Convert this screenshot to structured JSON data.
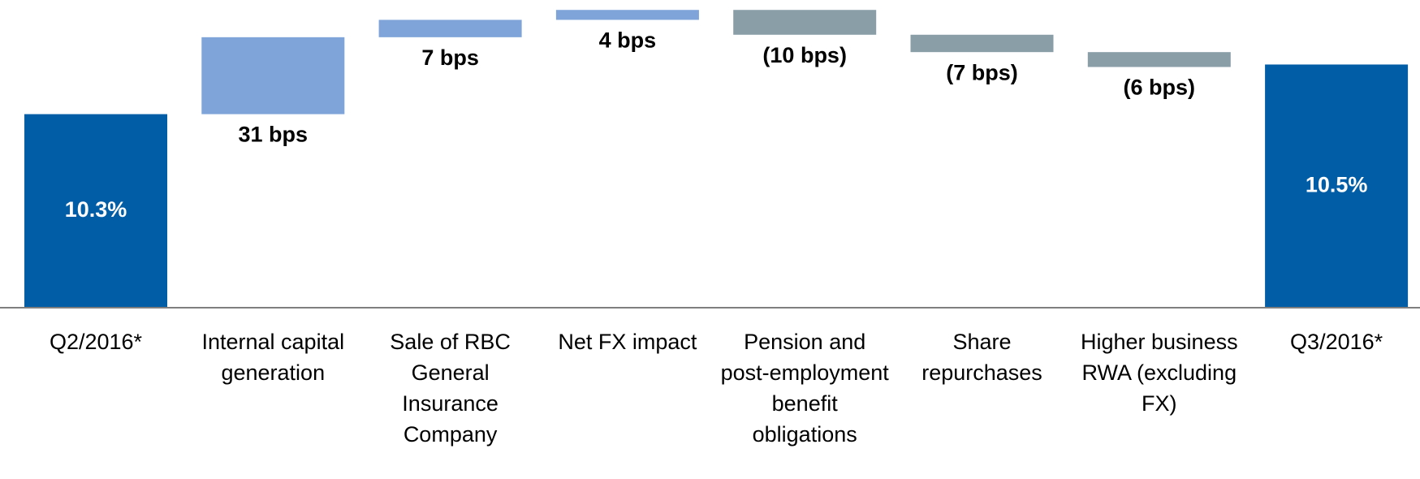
{
  "chart_data": {
    "type": "waterfall",
    "categories": [
      "Q2/2016*",
      "Internal capital generation",
      "Sale of RBC General Insurance Company",
      "Net FX impact",
      "Pension and post-employment benefit obligations",
      "Share repurchases",
      "Higher business RWA (excluding FX)",
      "Q3/2016*"
    ],
    "measure": [
      "absolute",
      "relative",
      "relative",
      "relative",
      "relative",
      "relative",
      "relative",
      "total"
    ],
    "values": [
      10.3,
      0.31,
      0.07,
      0.04,
      -0.1,
      -0.07,
      -0.06,
      10.5
    ],
    "value_labels": [
      "10.3%",
      "31 bps",
      "7 bps",
      "4 bps",
      "(10 bps)",
      "(7 bps)",
      "(6 bps)",
      "10.5%"
    ],
    "color_total": "#005da6",
    "color_increase": "#7ea4d9",
    "color_decrease": "#8a9ea8",
    "ylim": [
      9.52,
      10.76
    ]
  }
}
